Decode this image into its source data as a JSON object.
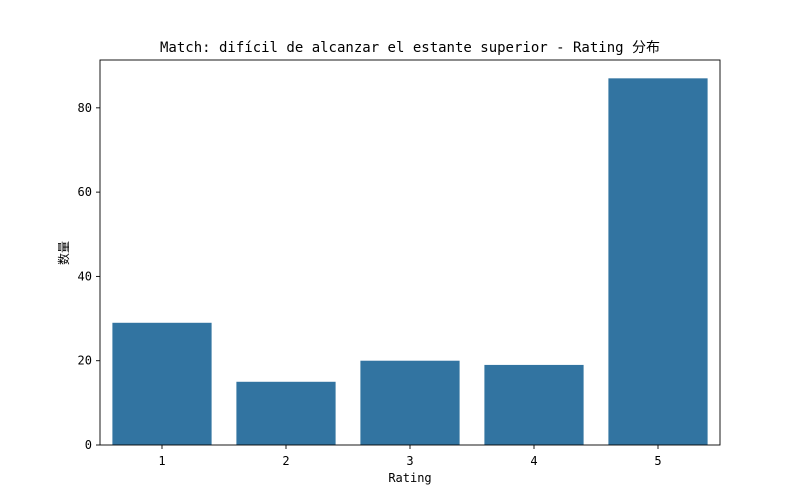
{
  "chart_data": {
    "type": "bar",
    "title": "Match: difícil de alcanzar el estante superior - Rating 分布",
    "xlabel": "Rating",
    "ylabel": "数量",
    "categories": [
      "1",
      "2",
      "3",
      "4",
      "5"
    ],
    "values": [
      29,
      15,
      20,
      19,
      87
    ],
    "ylim": [
      0,
      91.35
    ],
    "yticks": [
      0,
      20,
      40,
      60,
      80
    ],
    "grid": false,
    "legend": "none",
    "bar_color": "#3274a1"
  }
}
